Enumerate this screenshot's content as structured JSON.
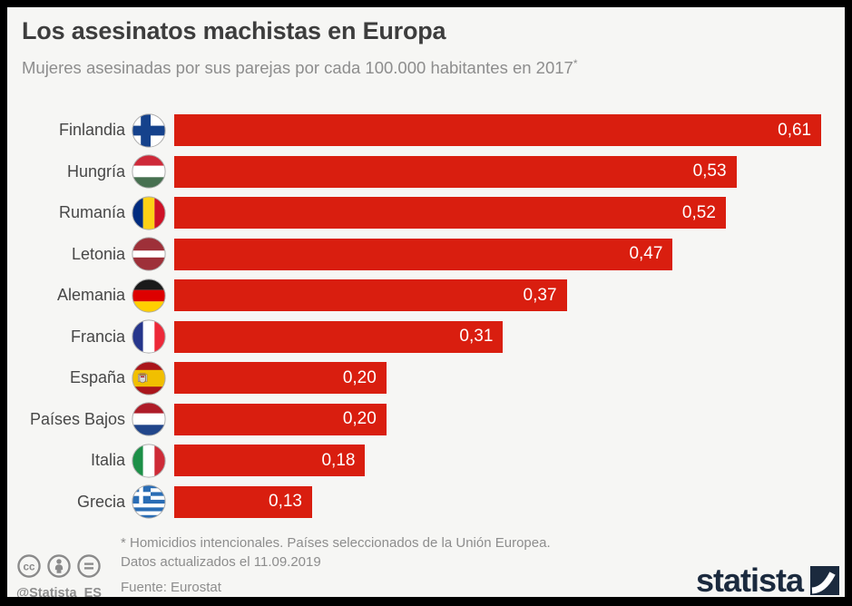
{
  "header": {
    "title": "Los asesinatos machistas en Europa",
    "subtitle": "Mujeres asesinadas por sus parejas por cada 100.000 habitantes en 2017",
    "subtitle_marker": "*"
  },
  "chart_data": {
    "type": "bar",
    "orientation": "horizontal",
    "title": "Los asesinatos machistas en Europa",
    "subtitle": "Mujeres asesinadas por sus parejas por cada 100.000 habitantes en 2017*",
    "categories": [
      "Finlandia",
      "Hungría",
      "Rumanía",
      "Letonia",
      "Alemania",
      "Francia",
      "España",
      "Países Bajos",
      "Italia",
      "Grecia"
    ],
    "values": [
      0.61,
      0.53,
      0.52,
      0.47,
      0.37,
      0.31,
      0.2,
      0.2,
      0.18,
      0.13
    ],
    "value_labels": [
      "0,61",
      "0,53",
      "0,52",
      "0,47",
      "0,37",
      "0,31",
      "0,20",
      "0,20",
      "0,18",
      "0,13"
    ],
    "flags": [
      "finland",
      "hungary",
      "romania",
      "latvia",
      "germany",
      "france",
      "spain",
      "netherlands",
      "italy",
      "greece"
    ],
    "bar_color": "#d91e0f",
    "value_label_color": "#ffffff",
    "xlim": [
      0,
      0.63
    ],
    "grid": false,
    "legend": false
  },
  "footnote": {
    "line1": "* Homicidios intencionales. Países seleccionados de la Unión Europea.",
    "line2": "Datos actualizados el 11.09.2019",
    "source": "Fuente: Eurostat"
  },
  "footer": {
    "license_icons": [
      "cc-icon",
      "attribution-icon",
      "no-derivatives-icon"
    ],
    "handle": "@Statista_ES",
    "brand": "statista",
    "brand_color": "#1b2a3e",
    "license_color": "#8a8a8a"
  }
}
